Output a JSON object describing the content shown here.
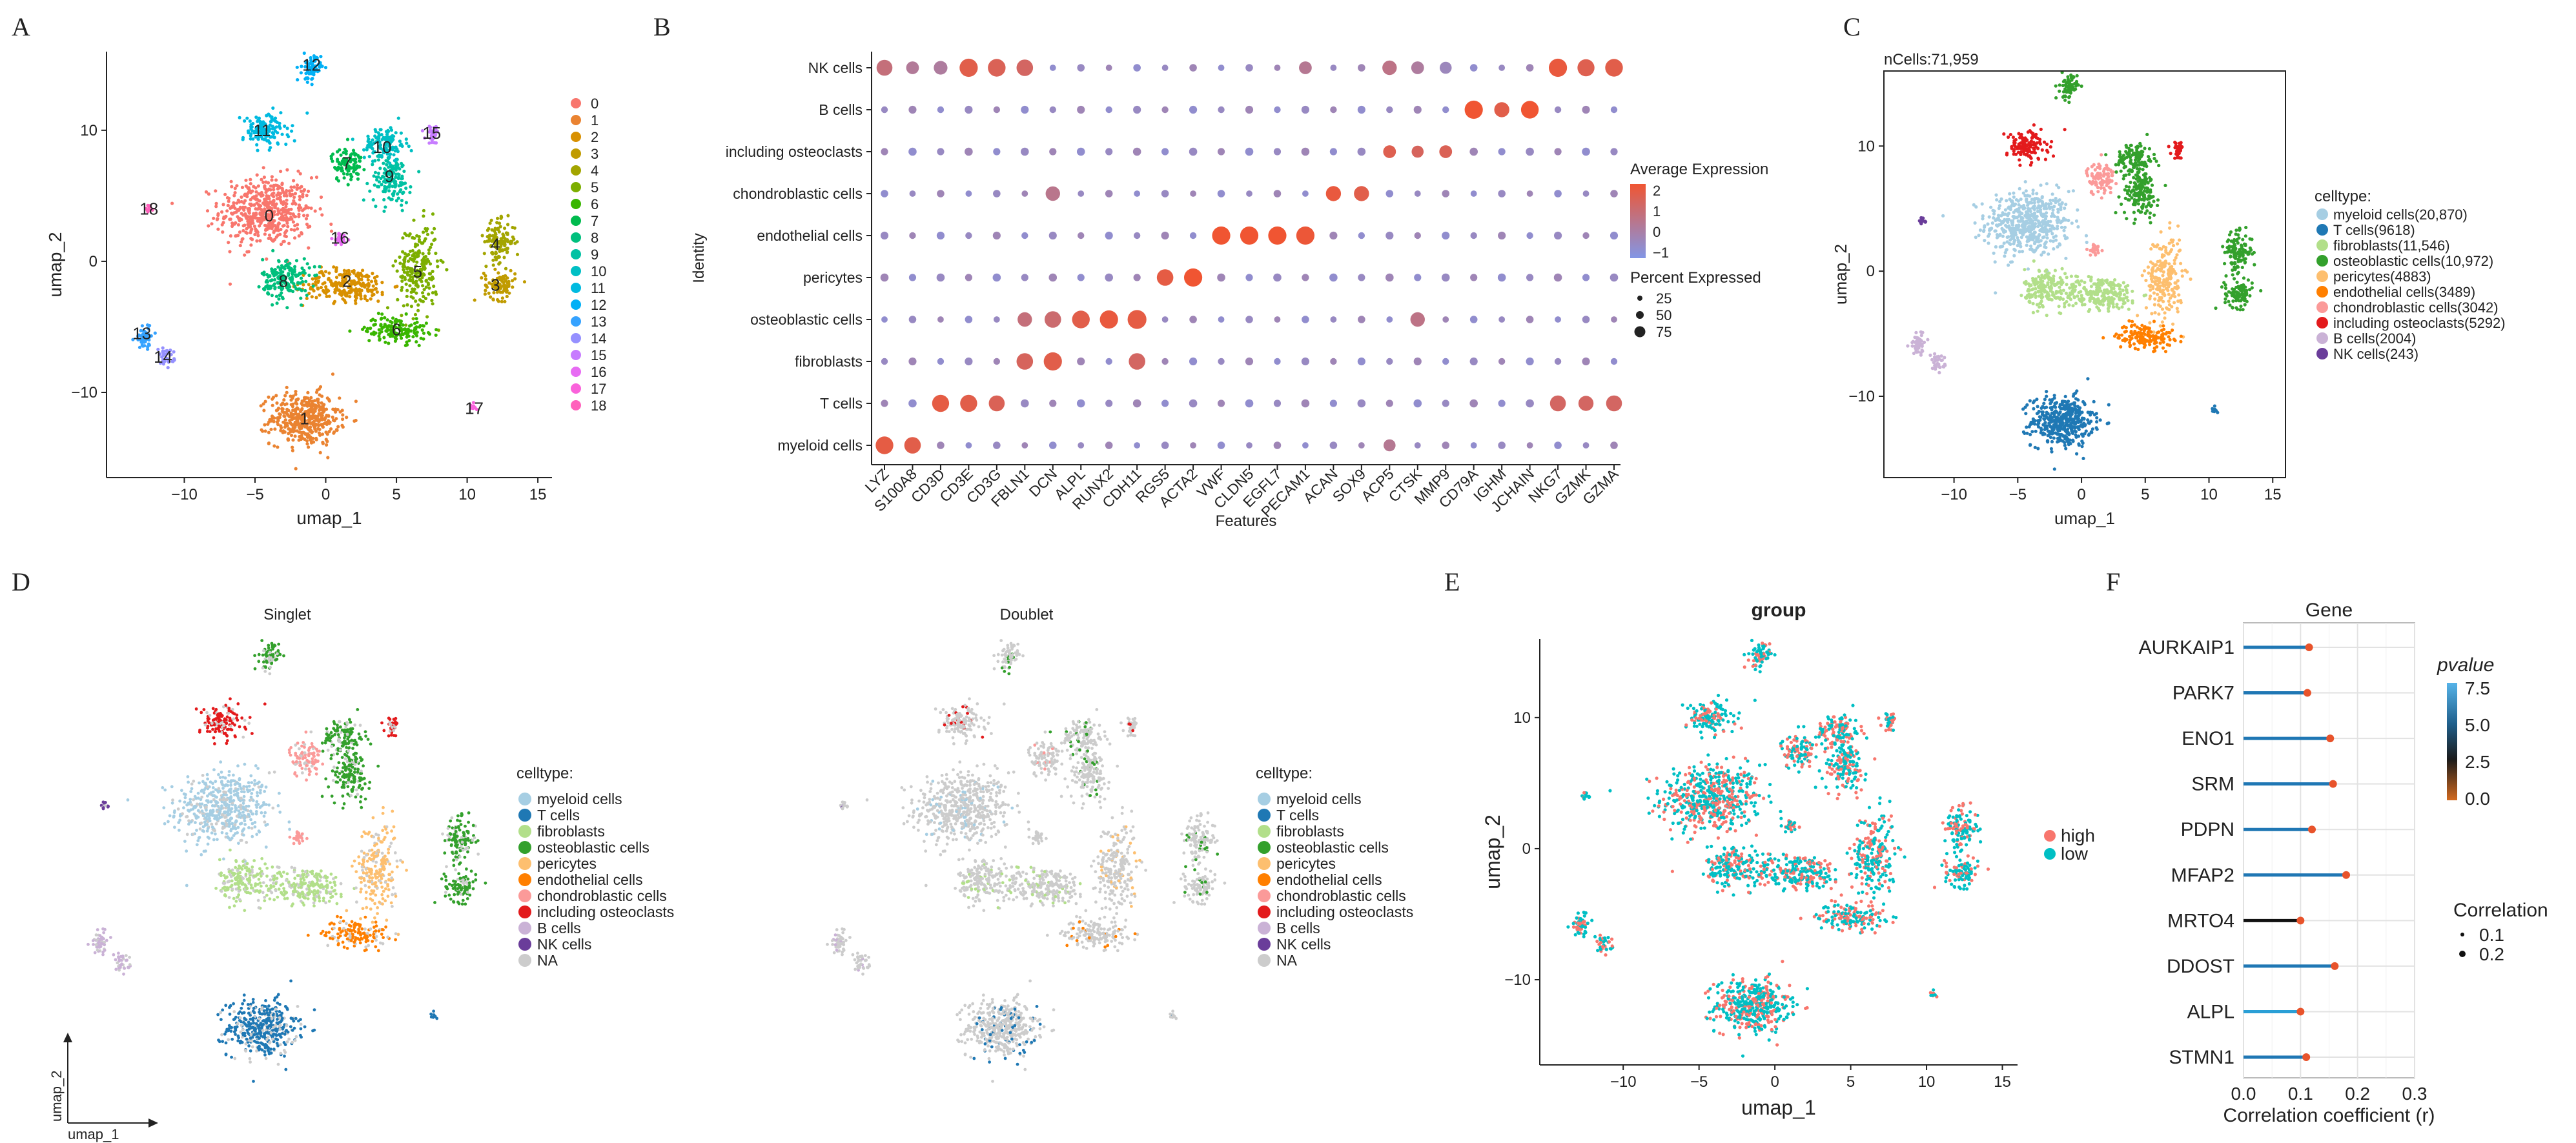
{
  "panel_letters": [
    "A",
    "B",
    "C",
    "D",
    "E",
    "F"
  ],
  "colors": {
    "myeloid": "#a6cee3",
    "tcell": "#1f78b4",
    "fibro": "#b2df8a",
    "osteob": "#33a02c",
    "pericyte": "#fdbf6f",
    "endo": "#ff7f00",
    "chondro": "#fb9a99",
    "osteoclast": "#e31a1c",
    "bcell": "#cab2d6",
    "nk": "#6a3d9a",
    "na": "#cccccc",
    "high": "#f8766d",
    "low": "#00bfc4"
  },
  "chart_data": [
    {
      "id": "A",
      "type": "scatter",
      "xlabel": "umap_1",
      "ylabel": "umap_2",
      "xticks": [
        -10,
        -5,
        0,
        5,
        10,
        15
      ],
      "yticks": [
        -10,
        0,
        10
      ],
      "xlim": [
        -15.5,
        16
      ],
      "ylim": [
        -16.5,
        16
      ],
      "legend_title": "",
      "legend": [
        "0",
        "1",
        "2",
        "3",
        "4",
        "5",
        "6",
        "7",
        "8",
        "9",
        "10",
        "11",
        "12",
        "13",
        "14",
        "15",
        "16",
        "17",
        "18"
      ],
      "legend_colors": [
        "#f8766d",
        "#ea8331",
        "#d89000",
        "#c09b00",
        "#a3a500",
        "#7cae00",
        "#39b600",
        "#00bb4e",
        "#00bf7d",
        "#00c1a3",
        "#00bfc4",
        "#00bae0",
        "#00b0f6",
        "#35a2ff",
        "#9590ff",
        "#c77cff",
        "#e76bf3",
        "#fa62db",
        "#ff62bc"
      ],
      "clusters": [
        {
          "label": "0",
          "x": -4,
          "y": 3.5,
          "color": "#f8766d"
        },
        {
          "label": "1",
          "x": -1.5,
          "y": -12,
          "color": "#ea8331"
        },
        {
          "label": "2",
          "x": 1.5,
          "y": -1.5,
          "color": "#d89000"
        },
        {
          "label": "3",
          "x": 12,
          "y": -1.8,
          "color": "#c09b00"
        },
        {
          "label": "4",
          "x": 12,
          "y": 1.3,
          "color": "#a3a500"
        },
        {
          "label": "5",
          "x": 6.5,
          "y": -0.8,
          "color": "#7cae00"
        },
        {
          "label": "6",
          "x": 5,
          "y": -5.2,
          "color": "#39b600"
        },
        {
          "label": "7",
          "x": 1.5,
          "y": 7.5,
          "color": "#00bb4e"
        },
        {
          "label": "8",
          "x": -3,
          "y": -1.5,
          "color": "#00bf7d"
        },
        {
          "label": "9",
          "x": 4.5,
          "y": 6.5,
          "color": "#00c1a3"
        },
        {
          "label": "10",
          "x": 4,
          "y": 8.7,
          "color": "#00bfc4"
        },
        {
          "label": "11",
          "x": -4.5,
          "y": 10,
          "color": "#00bae0"
        },
        {
          "label": "12",
          "x": -1,
          "y": 15,
          "color": "#00b0f6"
        },
        {
          "label": "13",
          "x": -13,
          "y": -5.5,
          "color": "#35a2ff"
        },
        {
          "label": "14",
          "x": -11.5,
          "y": -7.3,
          "color": "#9590ff"
        },
        {
          "label": "15",
          "x": 7.5,
          "y": 9.8,
          "color": "#c77cff"
        },
        {
          "label": "16",
          "x": 1,
          "y": 1.8,
          "color": "#e76bf3"
        },
        {
          "label": "17",
          "x": 10.5,
          "y": -11.2,
          "color": "#fa62db"
        },
        {
          "label": "18",
          "x": -12.5,
          "y": 4,
          "color": "#ff62bc"
        }
      ]
    },
    {
      "id": "B",
      "type": "dotplot",
      "xlabel": "Features",
      "ylabel": "Identity",
      "genes": [
        "LYZ",
        "S100A8",
        "CD3D",
        "CD3E",
        "CD3G",
        "FBLN1",
        "DCN",
        "ALPL",
        "RUNX2",
        "CDH11",
        "RGS5",
        "ACTA2",
        "VWF",
        "CLDN5",
        "EGFL7",
        "PECAM1",
        "ACAN",
        "SOX9",
        "ACP5",
        "CTSK",
        "MMP9",
        "CD79A",
        "IGHM",
        "JCHAIN",
        "NKG7",
        "GZMK",
        "GZMA"
      ],
      "cell_types": [
        "NK cells",
        "B cells",
        "including osteoclasts",
        "chondroblastic cells",
        "endothelial cells",
        "pericytes",
        "osteoblastic cells",
        "fibroblasts",
        "T cells",
        "myeloid cells"
      ],
      "legend_color_title": "Average Expression",
      "color_ticks": [
        "2",
        "1",
        "0",
        "−1"
      ],
      "legend_size_title": "Percent Expressed",
      "size_ticks": [
        "25",
        "50",
        "75"
      ],
      "high_dots": [
        {
          "row": 0,
          "col": 0,
          "pct": 50,
          "expr": 0.8
        },
        {
          "row": 0,
          "col": 1,
          "pct": 30,
          "expr": 0.3
        },
        {
          "row": 0,
          "col": 2,
          "pct": 35,
          "expr": 0.2
        },
        {
          "row": 0,
          "col": 3,
          "pct": 70,
          "expr": 1.6
        },
        {
          "row": 0,
          "col": 4,
          "pct": 65,
          "expr": 1.4
        },
        {
          "row": 0,
          "col": 5,
          "pct": 55,
          "expr": 1.2
        },
        {
          "row": 0,
          "col": 15,
          "pct": 30,
          "expr": 0.4
        },
        {
          "row": 0,
          "col": 18,
          "pct": 40,
          "expr": 0.6
        },
        {
          "row": 0,
          "col": 19,
          "pct": 30,
          "expr": 0.2
        },
        {
          "row": 0,
          "col": 20,
          "pct": 25,
          "expr": -0.3
        },
        {
          "row": 0,
          "col": 24,
          "pct": 70,
          "expr": 1.8
        },
        {
          "row": 0,
          "col": 25,
          "pct": 60,
          "expr": 1.5
        },
        {
          "row": 0,
          "col": 26,
          "pct": 65,
          "expr": 1.6
        },
        {
          "row": 1,
          "col": 21,
          "pct": 70,
          "expr": 2.0
        },
        {
          "row": 1,
          "col": 22,
          "pct": 45,
          "expr": 1.6
        },
        {
          "row": 1,
          "col": 23,
          "pct": 65,
          "expr": 2.0
        },
        {
          "row": 2,
          "col": 18,
          "pct": 30,
          "expr": 1.5
        },
        {
          "row": 2,
          "col": 19,
          "pct": 25,
          "expr": 1.3
        },
        {
          "row": 2,
          "col": 20,
          "pct": 30,
          "expr": 1.4
        },
        {
          "row": 3,
          "col": 16,
          "pct": 45,
          "expr": 1.8
        },
        {
          "row": 3,
          "col": 17,
          "pct": 45,
          "expr": 1.6
        },
        {
          "row": 3,
          "col": 6,
          "pct": 40,
          "expr": 0.5
        },
        {
          "row": 4,
          "col": 12,
          "pct": 70,
          "expr": 2.0
        },
        {
          "row": 4,
          "col": 13,
          "pct": 70,
          "expr": 2.0
        },
        {
          "row": 4,
          "col": 14,
          "pct": 70,
          "expr": 2.0
        },
        {
          "row": 4,
          "col": 15,
          "pct": 70,
          "expr": 1.9
        },
        {
          "row": 5,
          "col": 10,
          "pct": 55,
          "expr": 1.7
        },
        {
          "row": 5,
          "col": 11,
          "pct": 70,
          "expr": 2.0
        },
        {
          "row": 6,
          "col": 5,
          "pct": 40,
          "expr": 0.8
        },
        {
          "row": 6,
          "col": 6,
          "pct": 55,
          "expr": 1.0
        },
        {
          "row": 6,
          "col": 7,
          "pct": 65,
          "expr": 1.6
        },
        {
          "row": 6,
          "col": 8,
          "pct": 70,
          "expr": 1.8
        },
        {
          "row": 6,
          "col": 9,
          "pct": 75,
          "expr": 1.7
        },
        {
          "row": 6,
          "col": 19,
          "pct": 40,
          "expr": 0.6
        },
        {
          "row": 7,
          "col": 5,
          "pct": 55,
          "expr": 1.3
        },
        {
          "row": 7,
          "col": 6,
          "pct": 70,
          "expr": 1.6
        },
        {
          "row": 7,
          "col": 9,
          "pct": 55,
          "expr": 1.2
        },
        {
          "row": 8,
          "col": 2,
          "pct": 60,
          "expr": 1.7
        },
        {
          "row": 8,
          "col": 3,
          "pct": 60,
          "expr": 1.6
        },
        {
          "row": 8,
          "col": 4,
          "pct": 50,
          "expr": 1.4
        },
        {
          "row": 8,
          "col": 24,
          "pct": 50,
          "expr": 1.2
        },
        {
          "row": 8,
          "col": 25,
          "pct": 45,
          "expr": 1.2
        },
        {
          "row": 8,
          "col": 26,
          "pct": 50,
          "expr": 1.2
        },
        {
          "row": 9,
          "col": 0,
          "pct": 65,
          "expr": 1.7
        },
        {
          "row": 9,
          "col": 1,
          "pct": 55,
          "expr": 1.6
        },
        {
          "row": 9,
          "col": 18,
          "pct": 25,
          "expr": 0.4
        }
      ]
    },
    {
      "id": "C",
      "type": "scatter",
      "title": "nCells:71,959",
      "xlabel": "umap_1",
      "ylabel": "umap_2",
      "xticks": [
        -10,
        -5,
        0,
        5,
        10,
        15
      ],
      "yticks": [
        -10,
        0,
        10
      ],
      "xlim": [
        -15.5,
        16
      ],
      "ylim": [
        -16.5,
        16
      ],
      "legend_title": "celltype:",
      "legend": [
        "myeloid cells(20,870)",
        "T cells(9618)",
        "fibroblasts(11,546)",
        "osteoblastic cells(10,972)",
        "pericytes(4883)",
        "endothelial cells(3489)",
        "chondroblastic cells(3042)",
        "including osteoclasts(5292)",
        "B cells(2004)",
        "NK cells(243)"
      ]
    },
    {
      "id": "D1",
      "type": "scatter",
      "title": "Singlet",
      "xlabel": "umap_1",
      "ylabel": "umap_2",
      "legend_title": "celltype:",
      "legend": [
        "myeloid cells",
        "T cells",
        "fibroblasts",
        "osteoblastic cells",
        "pericytes",
        "endothelial cells",
        "chondroblastic cells",
        "including osteoclasts",
        "B cells",
        "NK cells",
        "NA"
      ]
    },
    {
      "id": "D2",
      "type": "scatter",
      "title": "Doublet",
      "legend_title": "celltype:",
      "legend": [
        "myeloid cells",
        "T cells",
        "fibroblasts",
        "osteoblastic cells",
        "pericytes",
        "endothelial cells",
        "chondroblastic cells",
        "including osteoclasts",
        "B cells",
        "NK cells",
        "NA"
      ]
    },
    {
      "id": "E",
      "type": "scatter",
      "title": "group",
      "xlabel": "umap_1",
      "ylabel": "umap_2",
      "xticks": [
        -10,
        -5,
        0,
        5,
        10,
        15
      ],
      "yticks": [
        -10,
        0,
        10
      ],
      "xlim": [
        -15.5,
        16
      ],
      "ylim": [
        -16.5,
        16
      ],
      "legend": [
        "high",
        "low"
      ]
    },
    {
      "id": "F",
      "type": "lollipop",
      "title": "Gene",
      "xlabel": "Correlation coefficient (r)",
      "xticks": [
        "0.0",
        "0.1",
        "0.2",
        "0.3"
      ],
      "xlim": [
        0,
        0.3
      ],
      "genes": [
        "AURKAIP1",
        "PARK7",
        "ENO1",
        "SRM",
        "PDPN",
        "MFAP2",
        "MRTO4",
        "DDOST",
        "ALPL",
        "STMN1"
      ],
      "values": [
        0.115,
        0.112,
        0.152,
        0.157,
        0.12,
        0.18,
        0.1,
        0.16,
        0.1,
        0.11
      ],
      "pvalues": [
        5.5,
        5.2,
        5.0,
        5.0,
        5.5,
        5.0,
        0.5,
        5.5,
        7.5,
        6.0
      ],
      "legend_color_title": "pvalue",
      "color_ticks": [
        "7.5",
        "5.0",
        "2.5",
        "0.0"
      ],
      "legend_size_title": "Correlation",
      "size_ticks": [
        "0.1",
        "0.2"
      ]
    }
  ]
}
